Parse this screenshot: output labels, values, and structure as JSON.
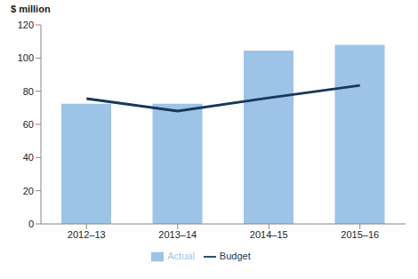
{
  "chart_data": {
    "type": "bar",
    "ylabel": "$ million",
    "categories": [
      "2012–13",
      "2013–14",
      "2014–15",
      "2015–16"
    ],
    "series": [
      {
        "name": "Actual",
        "type": "bar",
        "color": "#9dc3e6",
        "values": [
          72.5,
          72.5,
          104.5,
          108
        ]
      },
      {
        "name": "Budget",
        "type": "line",
        "color": "#17375e",
        "values": [
          75.5,
          68,
          76,
          83.5
        ]
      }
    ],
    "ylim": [
      0,
      120
    ],
    "yticks": [
      0,
      20,
      40,
      60,
      80,
      100,
      120
    ],
    "grid": false,
    "legend": "bottom"
  }
}
